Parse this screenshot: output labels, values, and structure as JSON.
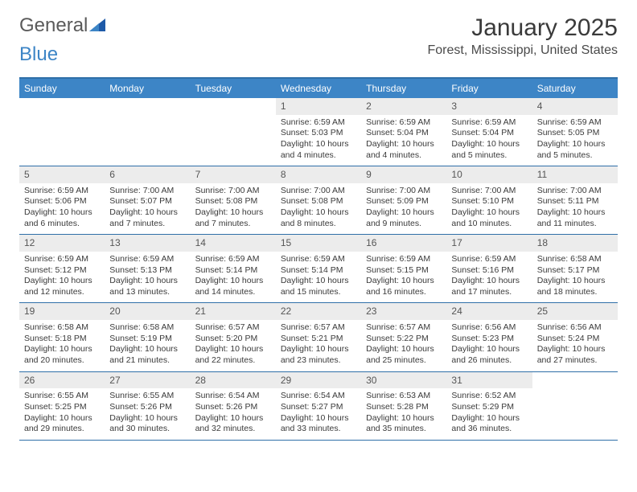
{
  "logo": {
    "part1": "General",
    "part2": "Blue"
  },
  "title": "January 2025",
  "location": "Forest, Mississippi, United States",
  "colors": {
    "header_bg": "#3d85c6",
    "rule": "#2f6fa8",
    "datenum_bg": "#ececec",
    "text": "#3a3a3a"
  },
  "day_names": [
    "Sunday",
    "Monday",
    "Tuesday",
    "Wednesday",
    "Thursday",
    "Friday",
    "Saturday"
  ],
  "weeks": [
    [
      {
        "blank": true
      },
      {
        "blank": true
      },
      {
        "blank": true
      },
      {
        "date": "1",
        "sunrise": "Sunrise: 6:59 AM",
        "sunset": "Sunset: 5:03 PM",
        "daylight": "Daylight: 10 hours and 4 minutes."
      },
      {
        "date": "2",
        "sunrise": "Sunrise: 6:59 AM",
        "sunset": "Sunset: 5:04 PM",
        "daylight": "Daylight: 10 hours and 4 minutes."
      },
      {
        "date": "3",
        "sunrise": "Sunrise: 6:59 AM",
        "sunset": "Sunset: 5:04 PM",
        "daylight": "Daylight: 10 hours and 5 minutes."
      },
      {
        "date": "4",
        "sunrise": "Sunrise: 6:59 AM",
        "sunset": "Sunset: 5:05 PM",
        "daylight": "Daylight: 10 hours and 5 minutes."
      }
    ],
    [
      {
        "date": "5",
        "sunrise": "Sunrise: 6:59 AM",
        "sunset": "Sunset: 5:06 PM",
        "daylight": "Daylight: 10 hours and 6 minutes."
      },
      {
        "date": "6",
        "sunrise": "Sunrise: 7:00 AM",
        "sunset": "Sunset: 5:07 PM",
        "daylight": "Daylight: 10 hours and 7 minutes."
      },
      {
        "date": "7",
        "sunrise": "Sunrise: 7:00 AM",
        "sunset": "Sunset: 5:08 PM",
        "daylight": "Daylight: 10 hours and 7 minutes."
      },
      {
        "date": "8",
        "sunrise": "Sunrise: 7:00 AM",
        "sunset": "Sunset: 5:08 PM",
        "daylight": "Daylight: 10 hours and 8 minutes."
      },
      {
        "date": "9",
        "sunrise": "Sunrise: 7:00 AM",
        "sunset": "Sunset: 5:09 PM",
        "daylight": "Daylight: 10 hours and 9 minutes."
      },
      {
        "date": "10",
        "sunrise": "Sunrise: 7:00 AM",
        "sunset": "Sunset: 5:10 PM",
        "daylight": "Daylight: 10 hours and 10 minutes."
      },
      {
        "date": "11",
        "sunrise": "Sunrise: 7:00 AM",
        "sunset": "Sunset: 5:11 PM",
        "daylight": "Daylight: 10 hours and 11 minutes."
      }
    ],
    [
      {
        "date": "12",
        "sunrise": "Sunrise: 6:59 AM",
        "sunset": "Sunset: 5:12 PM",
        "daylight": "Daylight: 10 hours and 12 minutes."
      },
      {
        "date": "13",
        "sunrise": "Sunrise: 6:59 AM",
        "sunset": "Sunset: 5:13 PM",
        "daylight": "Daylight: 10 hours and 13 minutes."
      },
      {
        "date": "14",
        "sunrise": "Sunrise: 6:59 AM",
        "sunset": "Sunset: 5:14 PM",
        "daylight": "Daylight: 10 hours and 14 minutes."
      },
      {
        "date": "15",
        "sunrise": "Sunrise: 6:59 AM",
        "sunset": "Sunset: 5:14 PM",
        "daylight": "Daylight: 10 hours and 15 minutes."
      },
      {
        "date": "16",
        "sunrise": "Sunrise: 6:59 AM",
        "sunset": "Sunset: 5:15 PM",
        "daylight": "Daylight: 10 hours and 16 minutes."
      },
      {
        "date": "17",
        "sunrise": "Sunrise: 6:59 AM",
        "sunset": "Sunset: 5:16 PM",
        "daylight": "Daylight: 10 hours and 17 minutes."
      },
      {
        "date": "18",
        "sunrise": "Sunrise: 6:58 AM",
        "sunset": "Sunset: 5:17 PM",
        "daylight": "Daylight: 10 hours and 18 minutes."
      }
    ],
    [
      {
        "date": "19",
        "sunrise": "Sunrise: 6:58 AM",
        "sunset": "Sunset: 5:18 PM",
        "daylight": "Daylight: 10 hours and 20 minutes."
      },
      {
        "date": "20",
        "sunrise": "Sunrise: 6:58 AM",
        "sunset": "Sunset: 5:19 PM",
        "daylight": "Daylight: 10 hours and 21 minutes."
      },
      {
        "date": "21",
        "sunrise": "Sunrise: 6:57 AM",
        "sunset": "Sunset: 5:20 PM",
        "daylight": "Daylight: 10 hours and 22 minutes."
      },
      {
        "date": "22",
        "sunrise": "Sunrise: 6:57 AM",
        "sunset": "Sunset: 5:21 PM",
        "daylight": "Daylight: 10 hours and 23 minutes."
      },
      {
        "date": "23",
        "sunrise": "Sunrise: 6:57 AM",
        "sunset": "Sunset: 5:22 PM",
        "daylight": "Daylight: 10 hours and 25 minutes."
      },
      {
        "date": "24",
        "sunrise": "Sunrise: 6:56 AM",
        "sunset": "Sunset: 5:23 PM",
        "daylight": "Daylight: 10 hours and 26 minutes."
      },
      {
        "date": "25",
        "sunrise": "Sunrise: 6:56 AM",
        "sunset": "Sunset: 5:24 PM",
        "daylight": "Daylight: 10 hours and 27 minutes."
      }
    ],
    [
      {
        "date": "26",
        "sunrise": "Sunrise: 6:55 AM",
        "sunset": "Sunset: 5:25 PM",
        "daylight": "Daylight: 10 hours and 29 minutes."
      },
      {
        "date": "27",
        "sunrise": "Sunrise: 6:55 AM",
        "sunset": "Sunset: 5:26 PM",
        "daylight": "Daylight: 10 hours and 30 minutes."
      },
      {
        "date": "28",
        "sunrise": "Sunrise: 6:54 AM",
        "sunset": "Sunset: 5:26 PM",
        "daylight": "Daylight: 10 hours and 32 minutes."
      },
      {
        "date": "29",
        "sunrise": "Sunrise: 6:54 AM",
        "sunset": "Sunset: 5:27 PM",
        "daylight": "Daylight: 10 hours and 33 minutes."
      },
      {
        "date": "30",
        "sunrise": "Sunrise: 6:53 AM",
        "sunset": "Sunset: 5:28 PM",
        "daylight": "Daylight: 10 hours and 35 minutes."
      },
      {
        "date": "31",
        "sunrise": "Sunrise: 6:52 AM",
        "sunset": "Sunset: 5:29 PM",
        "daylight": "Daylight: 10 hours and 36 minutes."
      },
      {
        "blank": true
      }
    ]
  ]
}
